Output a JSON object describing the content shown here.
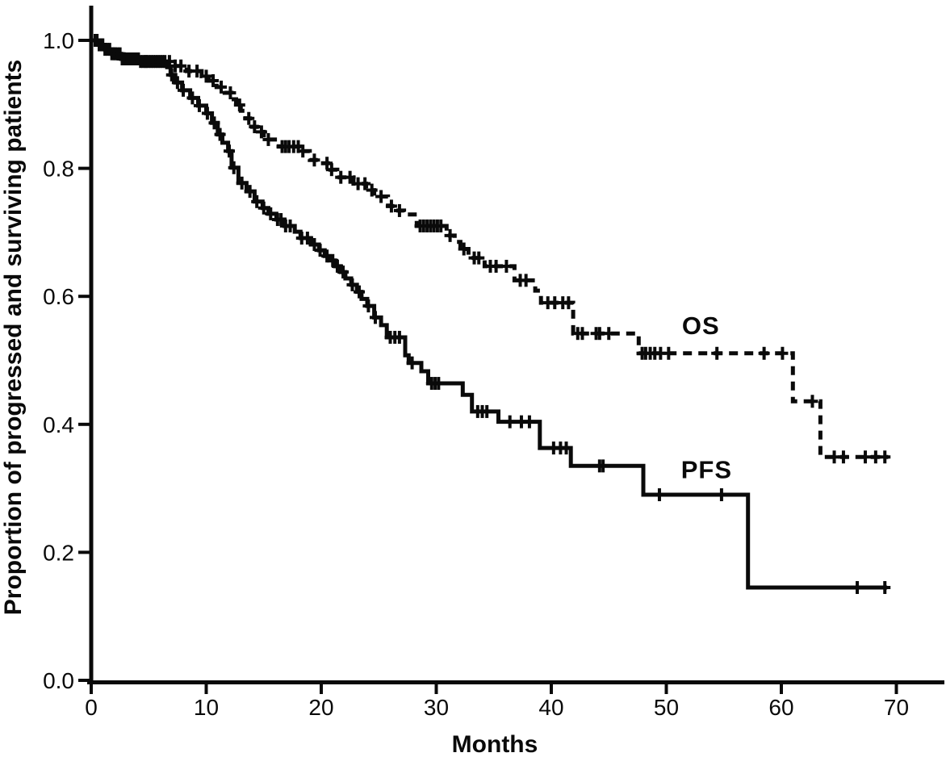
{
  "figure": {
    "kind": "kaplan-meier-survival-plot",
    "background_color": "#ffffff",
    "line_color": "#0a0a0a",
    "os_label": "OS",
    "pfs_label": "PFS"
  },
  "chart_data": {
    "type": "line",
    "subtype": "kaplan-meier-step",
    "title": "",
    "xlabel": "Months",
    "ylabel": "Proportion of progressed and surviving patients",
    "xlim": [
      0,
      74
    ],
    "ylim": [
      0.0,
      1.0
    ],
    "x_ticks": [
      0,
      10,
      20,
      30,
      40,
      50,
      60,
      70
    ],
    "y_ticks": [
      {
        "value": 0.0,
        "label": "0.0"
      },
      {
        "value": 0.2,
        "label": "0.2"
      },
      {
        "value": 0.4,
        "label": "0.4"
      },
      {
        "value": 0.6,
        "label": "0.6"
      },
      {
        "value": 0.8,
        "label": "0.8"
      },
      {
        "value": 1.0,
        "label": "1.0"
      }
    ],
    "grid": false,
    "legend_position": "inline-annotations",
    "series": [
      {
        "name": "OS",
        "style": "dashed",
        "label": "OS",
        "label_anchor": {
          "month": 53.0,
          "value": 0.555
        },
        "steps": [
          [
            0,
            1.0
          ],
          [
            0.7,
            0.993
          ],
          [
            1.2,
            0.986
          ],
          [
            1.8,
            0.979
          ],
          [
            2.6,
            0.971
          ],
          [
            4.3,
            0.967
          ],
          [
            7.2,
            0.96
          ],
          [
            8.3,
            0.952
          ],
          [
            9.6,
            0.944
          ],
          [
            10.2,
            0.937
          ],
          [
            10.9,
            0.927
          ],
          [
            11.6,
            0.918
          ],
          [
            12.2,
            0.908
          ],
          [
            12.6,
            0.899
          ],
          [
            13.0,
            0.89
          ],
          [
            13.4,
            0.878
          ],
          [
            14.0,
            0.865
          ],
          [
            14.4,
            0.857
          ],
          [
            15.0,
            0.845
          ],
          [
            16.3,
            0.834
          ],
          [
            18.2,
            0.827
          ],
          [
            19.0,
            0.813
          ],
          [
            19.8,
            0.808
          ],
          [
            20.8,
            0.798
          ],
          [
            21.4,
            0.786
          ],
          [
            22.8,
            0.776
          ],
          [
            23.9,
            0.766
          ],
          [
            24.6,
            0.756
          ],
          [
            25.8,
            0.741
          ],
          [
            26.5,
            0.734
          ],
          [
            27.2,
            0.728
          ],
          [
            28.3,
            0.71
          ],
          [
            30.9,
            0.695
          ],
          [
            31.6,
            0.685
          ],
          [
            32.1,
            0.674
          ],
          [
            32.8,
            0.66
          ],
          [
            34.2,
            0.647
          ],
          [
            36.8,
            0.625
          ],
          [
            38.6,
            0.609
          ],
          [
            39.1,
            0.59
          ],
          [
            41.9,
            0.542
          ],
          [
            47.6,
            0.511
          ],
          [
            61.0,
            0.436
          ],
          [
            63.4,
            0.349
          ],
          [
            69.3,
            0.349
          ]
        ],
        "censor_months": [
          0.35,
          0.7,
          1.0,
          1.4,
          1.8,
          2.1,
          2.5,
          2.9,
          3.3,
          3.7,
          4.1,
          4.5,
          4.8,
          5.2,
          5.6,
          6.0,
          6.4,
          6.8,
          7.3,
          7.8,
          8.5,
          9.2,
          10.0,
          10.6,
          11.3,
          12.1,
          12.9,
          13.7,
          14.2,
          14.8,
          15.4,
          16.6,
          16.9,
          17.2,
          17.6,
          18.0,
          18.4,
          19.4,
          20.5,
          20.9,
          21.7,
          22.5,
          23.2,
          23.8,
          24.4,
          25.2,
          26.1,
          26.8,
          28.6,
          28.9,
          29.2,
          29.5,
          29.8,
          30.1,
          30.4,
          31.2,
          32.4,
          33.3,
          33.7,
          34.7,
          35.2,
          36.1,
          37.3,
          37.8,
          39.7,
          40.3,
          41.0,
          41.5,
          42.3,
          42.7,
          43.9,
          44.2,
          45.0,
          47.9,
          48.2,
          48.6,
          49.0,
          49.5,
          50.2,
          54.4,
          58.5,
          60.1,
          62.7,
          64.6,
          65.4,
          67.3,
          68.2,
          69.0
        ]
      },
      {
        "name": "PFS",
        "style": "solid",
        "label": "PFS",
        "label_anchor": {
          "month": 53.5,
          "value": 0.33
        },
        "steps": [
          [
            0,
            1.0
          ],
          [
            0.7,
            0.993
          ],
          [
            1.2,
            0.986
          ],
          [
            1.8,
            0.979
          ],
          [
            2.6,
            0.971
          ],
          [
            4.3,
            0.967
          ],
          [
            6.6,
            0.958
          ],
          [
            6.9,
            0.946
          ],
          [
            7.3,
            0.934
          ],
          [
            7.9,
            0.922
          ],
          [
            8.6,
            0.91
          ],
          [
            9.3,
            0.898
          ],
          [
            10.0,
            0.886
          ],
          [
            10.5,
            0.871
          ],
          [
            11.0,
            0.853
          ],
          [
            11.4,
            0.84
          ],
          [
            11.9,
            0.827
          ],
          [
            12.2,
            0.801
          ],
          [
            12.8,
            0.777
          ],
          [
            13.5,
            0.764
          ],
          [
            14.2,
            0.748
          ],
          [
            14.9,
            0.738
          ],
          [
            15.4,
            0.729
          ],
          [
            16.1,
            0.72
          ],
          [
            16.8,
            0.71
          ],
          [
            17.7,
            0.701
          ],
          [
            18.2,
            0.691
          ],
          [
            19.1,
            0.681
          ],
          [
            19.8,
            0.672
          ],
          [
            20.3,
            0.663
          ],
          [
            20.7,
            0.656
          ],
          [
            21.2,
            0.647
          ],
          [
            21.7,
            0.638
          ],
          [
            22.1,
            0.628
          ],
          [
            22.6,
            0.618
          ],
          [
            23.1,
            0.607
          ],
          [
            23.5,
            0.596
          ],
          [
            24.0,
            0.585
          ],
          [
            24.6,
            0.567
          ],
          [
            25.2,
            0.555
          ],
          [
            25.7,
            0.536
          ],
          [
            27.3,
            0.508
          ],
          [
            27.6,
            0.496
          ],
          [
            28.7,
            0.483
          ],
          [
            29.3,
            0.464
          ],
          [
            32.3,
            0.446
          ],
          [
            33.1,
            0.42
          ],
          [
            35.4,
            0.404
          ],
          [
            39.0,
            0.363
          ],
          [
            41.7,
            0.335
          ],
          [
            48.0,
            0.29
          ],
          [
            57.1,
            0.145
          ],
          [
            69.2,
            0.145
          ]
        ],
        "censor_months": [
          0.5,
          0.9,
          1.2,
          1.6,
          2.0,
          2.3,
          2.7,
          3.1,
          3.5,
          3.9,
          4.3,
          4.7,
          5.0,
          5.4,
          5.8,
          6.2,
          7.0,
          7.5,
          8.0,
          8.8,
          9.4,
          10.1,
          10.7,
          11.2,
          12.0,
          12.4,
          13.1,
          13.8,
          14.4,
          15.0,
          15.6,
          16.2,
          16.5,
          16.9,
          17.3,
          18.3,
          18.8,
          19.4,
          19.9,
          20.5,
          21.0,
          21.4,
          21.9,
          22.7,
          23.3,
          24.1,
          24.7,
          26.0,
          26.4,
          26.8,
          27.9,
          29.6,
          29.9,
          30.2,
          33.6,
          34.0,
          34.4,
          36.4,
          37.4,
          38.1,
          40.2,
          40.8,
          41.3,
          44.2,
          44.5,
          49.4,
          54.8,
          66.6,
          69.0
        ]
      }
    ]
  }
}
